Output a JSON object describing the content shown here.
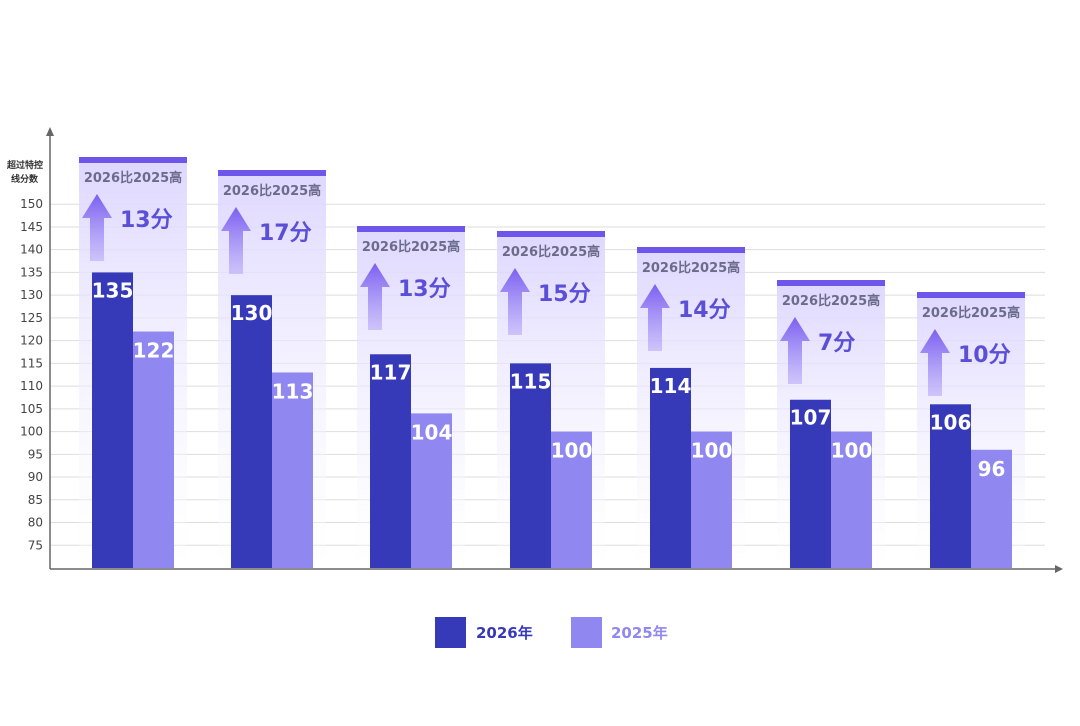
{
  "colors": {
    "series_2026": "#363ab8",
    "series_2025": "#9088f0",
    "accent": "#7b5ff0",
    "panel_top": "#6f56ea",
    "panel_fill": "#e6e1ff",
    "arrow": "#7b5ff0",
    "axis": "#666666",
    "grid": "#dddddd"
  },
  "chart_data": {
    "type": "bar",
    "ylabel": "超过特控线分数",
    "ylim": [
      70,
      165
    ],
    "yticks": [
      75,
      80,
      85,
      90,
      95,
      100,
      105,
      110,
      115,
      120,
      125,
      130,
      135,
      140,
      145,
      150
    ],
    "categories": [
      "",
      "",
      "",
      "",
      "",
      "",
      ""
    ],
    "series": [
      {
        "name": "2026年",
        "values": [
          135,
          130,
          117,
          115,
          114,
          107,
          106
        ]
      },
      {
        "name": "2025年",
        "values": [
          122,
          113,
          104,
          100,
          100,
          100,
          96
        ]
      }
    ],
    "comparison_label": "2026比2025高",
    "differences": [
      "13分",
      "17分",
      "13分",
      "15分",
      "14分",
      "7分",
      "10分"
    ],
    "grid": true,
    "legend": "bottom"
  }
}
